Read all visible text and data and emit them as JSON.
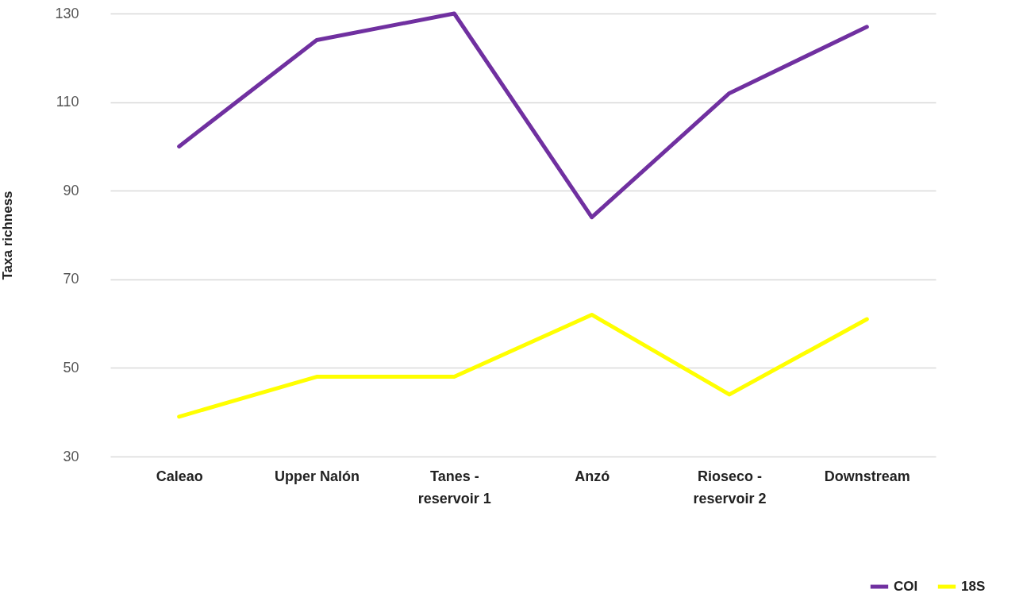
{
  "chart_data": {
    "type": "line",
    "ylabel": "Taxa richness",
    "categories": [
      "Caleao",
      "Upper Nalón",
      "Tanes - reservoir 1",
      "Anzó",
      "Rioseco - reservoir 2",
      "Downstream"
    ],
    "series": [
      {
        "name": "COI",
        "color": "#7030a0",
        "values": [
          100,
          124,
          130,
          84,
          112,
          127
        ]
      },
      {
        "name": "18S",
        "color": "#ffff00",
        "values": [
          39,
          48,
          48,
          62,
          44,
          61
        ]
      }
    ],
    "ylim": [
      30,
      130
    ],
    "yticks": [
      30,
      50,
      70,
      90,
      110,
      130
    ],
    "grid": "y",
    "legend": "bottom right"
  }
}
